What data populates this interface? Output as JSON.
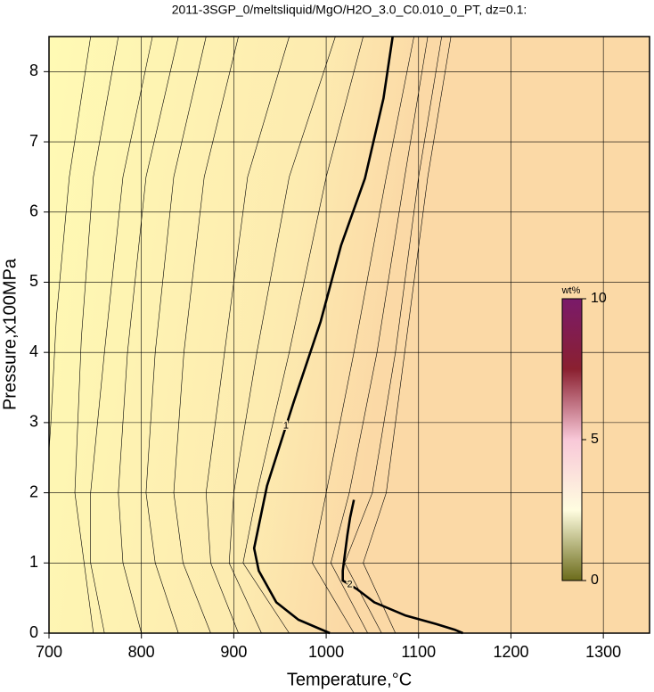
{
  "chart_data": {
    "type": "contour",
    "title": "2011-3SGP_0/meltsliquid/MgO/H2O_3.0_C0.010_0_PT, dz=0.1:",
    "x_label": "Temperature,°C",
    "y_label": "Pressure,x100MPa",
    "xlim": [
      700,
      1350
    ],
    "ylim": [
      0,
      8.5
    ],
    "xticks": [
      700,
      800,
      900,
      1000,
      1100,
      1200,
      1300
    ],
    "yticks": [
      0,
      1,
      2,
      3,
      4,
      5,
      6,
      7,
      8
    ],
    "grid": true,
    "color": "#000000",
    "series": [
      {
        "level": 0.1,
        "labeled": false,
        "x": [
          745,
          722,
          708,
          702,
          700
        ],
        "y": [
          8.5,
          6.5,
          4.5,
          3,
          2.6
        ]
      },
      {
        "level": 0.2,
        "labeled": false,
        "x": [
          775,
          748,
          735,
          728,
          738,
          748
        ],
        "y": [
          8.5,
          6.5,
          4.2,
          2,
          1,
          0
        ]
      },
      {
        "level": 0.3,
        "labeled": false,
        "x": [
          812,
          780,
          760,
          745,
          745,
          760
        ],
        "y": [
          8.5,
          6.5,
          4,
          2,
          1,
          0
        ]
      },
      {
        "level": 0.4,
        "labeled": false,
        "x": [
          840,
          805,
          785,
          775,
          780,
          800
        ],
        "y": [
          8.5,
          6.5,
          4,
          2,
          1,
          0
        ]
      },
      {
        "level": 0.5,
        "labeled": false,
        "x": [
          870,
          835,
          815,
          805,
          815,
          840
        ],
        "y": [
          8.5,
          6.5,
          4,
          2,
          1,
          0
        ]
      },
      {
        "level": 0.6,
        "labeled": false,
        "x": [
          905,
          868,
          846,
          835,
          845,
          875
        ],
        "y": [
          8.5,
          6.5,
          4,
          2,
          1,
          0
        ]
      },
      {
        "level": 0.7,
        "labeled": false,
        "x": [
          960,
          915,
          890,
          870,
          875,
          905
        ],
        "y": [
          8.5,
          6.5,
          4,
          2,
          1,
          0
        ]
      },
      {
        "level": 0.8,
        "labeled": false,
        "x": [
          1010,
          960,
          925,
          900,
          895,
          930
        ],
        "y": [
          8.5,
          6.5,
          4,
          2,
          1,
          0
        ]
      },
      {
        "level": 0.9,
        "labeled": false,
        "x": [
          1040,
          1000,
          960,
          925,
          910,
          960
        ],
        "y": [
          8.5,
          6.5,
          4,
          2,
          1,
          0
        ]
      },
      {
        "level": 1,
        "labeled": true,
        "x": [
          1072,
          1062,
          1042,
          1016,
          994,
          965,
          948,
          936,
          922,
          927,
          946,
          970,
          1004
        ],
        "y": [
          8.5,
          7.62,
          6.48,
          5.52,
          4.44,
          3.3,
          2.6,
          2.1,
          1.21,
          0.89,
          0.44,
          0.19,
          0
        ]
      },
      {
        "level": 1.2,
        "labeled": false,
        "x": [
          1095,
          1065,
          1030,
          1000,
          985,
          1030
        ],
        "y": [
          8.5,
          6.5,
          4,
          2,
          1,
          0
        ]
      },
      {
        "level": 1.4,
        "labeled": false,
        "x": [
          1110,
          1085,
          1055,
          1025,
          1005,
          1045
        ],
        "y": [
          8.5,
          6.5,
          4,
          2,
          1,
          0
        ]
      },
      {
        "level": 1.6,
        "labeled": false,
        "x": [
          1125,
          1100,
          1075,
          1050,
          1020,
          1060
        ],
        "y": [
          8.5,
          6.5,
          4,
          2,
          1,
          0
        ]
      },
      {
        "level": 1.8,
        "labeled": false,
        "x": [
          1135,
          1110,
          1085,
          1065,
          1040,
          1075
        ],
        "y": [
          8.5,
          6.5,
          4,
          2,
          1,
          0
        ]
      },
      {
        "level": 2,
        "labeled": true,
        "x": [
          1030,
          1026,
          1023,
          1018,
          1018,
          1033,
          1052,
          1086,
          1119,
          1139,
          1148
        ],
        "y": [
          1.9,
          1.65,
          1.4,
          0.89,
          0.75,
          0.63,
          0.44,
          0.25,
          0.13,
          0.05,
          0
        ]
      }
    ],
    "colorbar": {
      "label": "wt%",
      "lim": [
        0,
        10
      ],
      "ticks": [
        0,
        5,
        10
      ],
      "colors": [
        "#6b6b1a",
        "#fffde0",
        "#f8c8d8",
        "#8a2030",
        "#7a1a6a"
      ]
    }
  }
}
